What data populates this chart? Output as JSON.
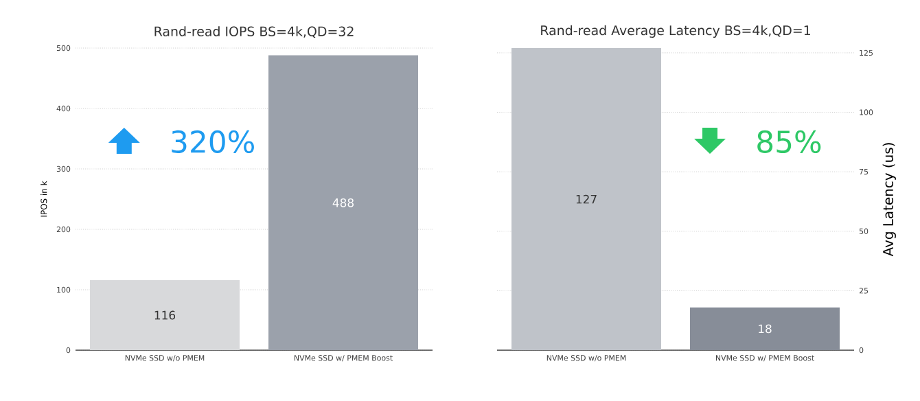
{
  "chart_data": [
    {
      "type": "bar",
      "title": "Rand-read IOPS BS=4k,QD=32",
      "ylabel": "IPOS in k",
      "categories": [
        "NVMe SSD w/o PMEM",
        "NVMe SSD w/ PMEM Boost"
      ],
      "values": [
        116,
        488
      ],
      "colors": [
        "#d8d9db",
        "#9ba1ab"
      ],
      "ylim": [
        0,
        500
      ],
      "yticks": [
        0,
        100,
        200,
        300,
        400,
        500
      ],
      "grid": "y",
      "data_labels": true,
      "annotations": [
        "320%"
      ]
    },
    {
      "type": "bar",
      "title": "Rand-read Average Latency BS=4k,QD=1",
      "y2label": "Avg Latency (us)",
      "categories": [
        "NVMe SSD w/o PMEM",
        "NVMe SSD w/ PMEM Boost"
      ],
      "series": [
        {
          "values": [
            127,
            18
          ],
          "axis": "y2"
        }
      ],
      "colors": [
        "#bfc3c9",
        "#878d98"
      ],
      "y2lim": [
        0,
        127
      ],
      "y2ticks": [
        0,
        25,
        50,
        75,
        100,
        125
      ],
      "grid": "y",
      "data_labels": true,
      "annotations": [
        "85%"
      ]
    }
  ]
}
